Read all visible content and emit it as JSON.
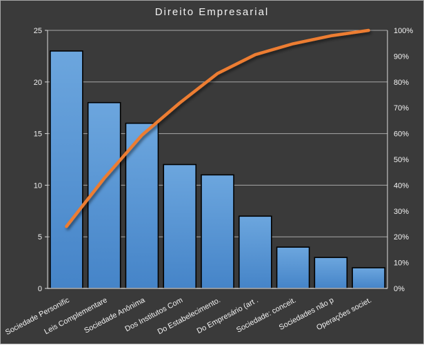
{
  "frame": {
    "background": "#3A3A3A",
    "border_color": "#A6A6A6"
  },
  "chart_data": {
    "type": "bar",
    "subtype": "pareto (bars + cumulative percentage line)",
    "title": "Direito Empresarial",
    "categories": [
      "Sociedade Personific",
      "Leis Complementare",
      "Sociedade Anônima",
      "Dos Institutos Com",
      "Do Estabelecimento.",
      "Do Empresário (art .",
      "Sociedade: conceit.",
      "Sociedades não p",
      "Operações societ."
    ],
    "series": [
      {
        "type": "bar",
        "values": [
          23,
          18,
          16,
          12,
          11,
          7,
          4,
          3,
          2
        ]
      },
      {
        "type": "line",
        "cumulative_percent": [
          24.0,
          42.7,
          59.4,
          71.9,
          83.3,
          90.6,
          94.8,
          97.9,
          100.0
        ],
        "smooth": false
      }
    ],
    "left_axis": {
      "min": 0,
      "max": 25,
      "step": 5,
      "tick_labels": [
        "0",
        "5",
        "10",
        "15",
        "20",
        "25"
      ]
    },
    "right_axis": {
      "min": 0,
      "max": 100,
      "step": 10,
      "tick_labels": [
        "0%",
        "10%",
        "20%",
        "30%",
        "40%",
        "50%",
        "60%",
        "70%",
        "80%",
        "90%",
        "100%"
      ]
    },
    "legend": "none",
    "grid": "horizontal gridlines every 5 units (= every 20%)",
    "x_label_rotation_deg": -28,
    "colors": {
      "background": "#3A3A3A",
      "bar_top": "#6CA6DE",
      "bar_bottom": "#4584C8",
      "bar_border": "#000000",
      "line": "#ED7D31",
      "gridline": "#A8A8A8",
      "axis": "#DCDCDC",
      "text": "#F2F2F2"
    }
  }
}
